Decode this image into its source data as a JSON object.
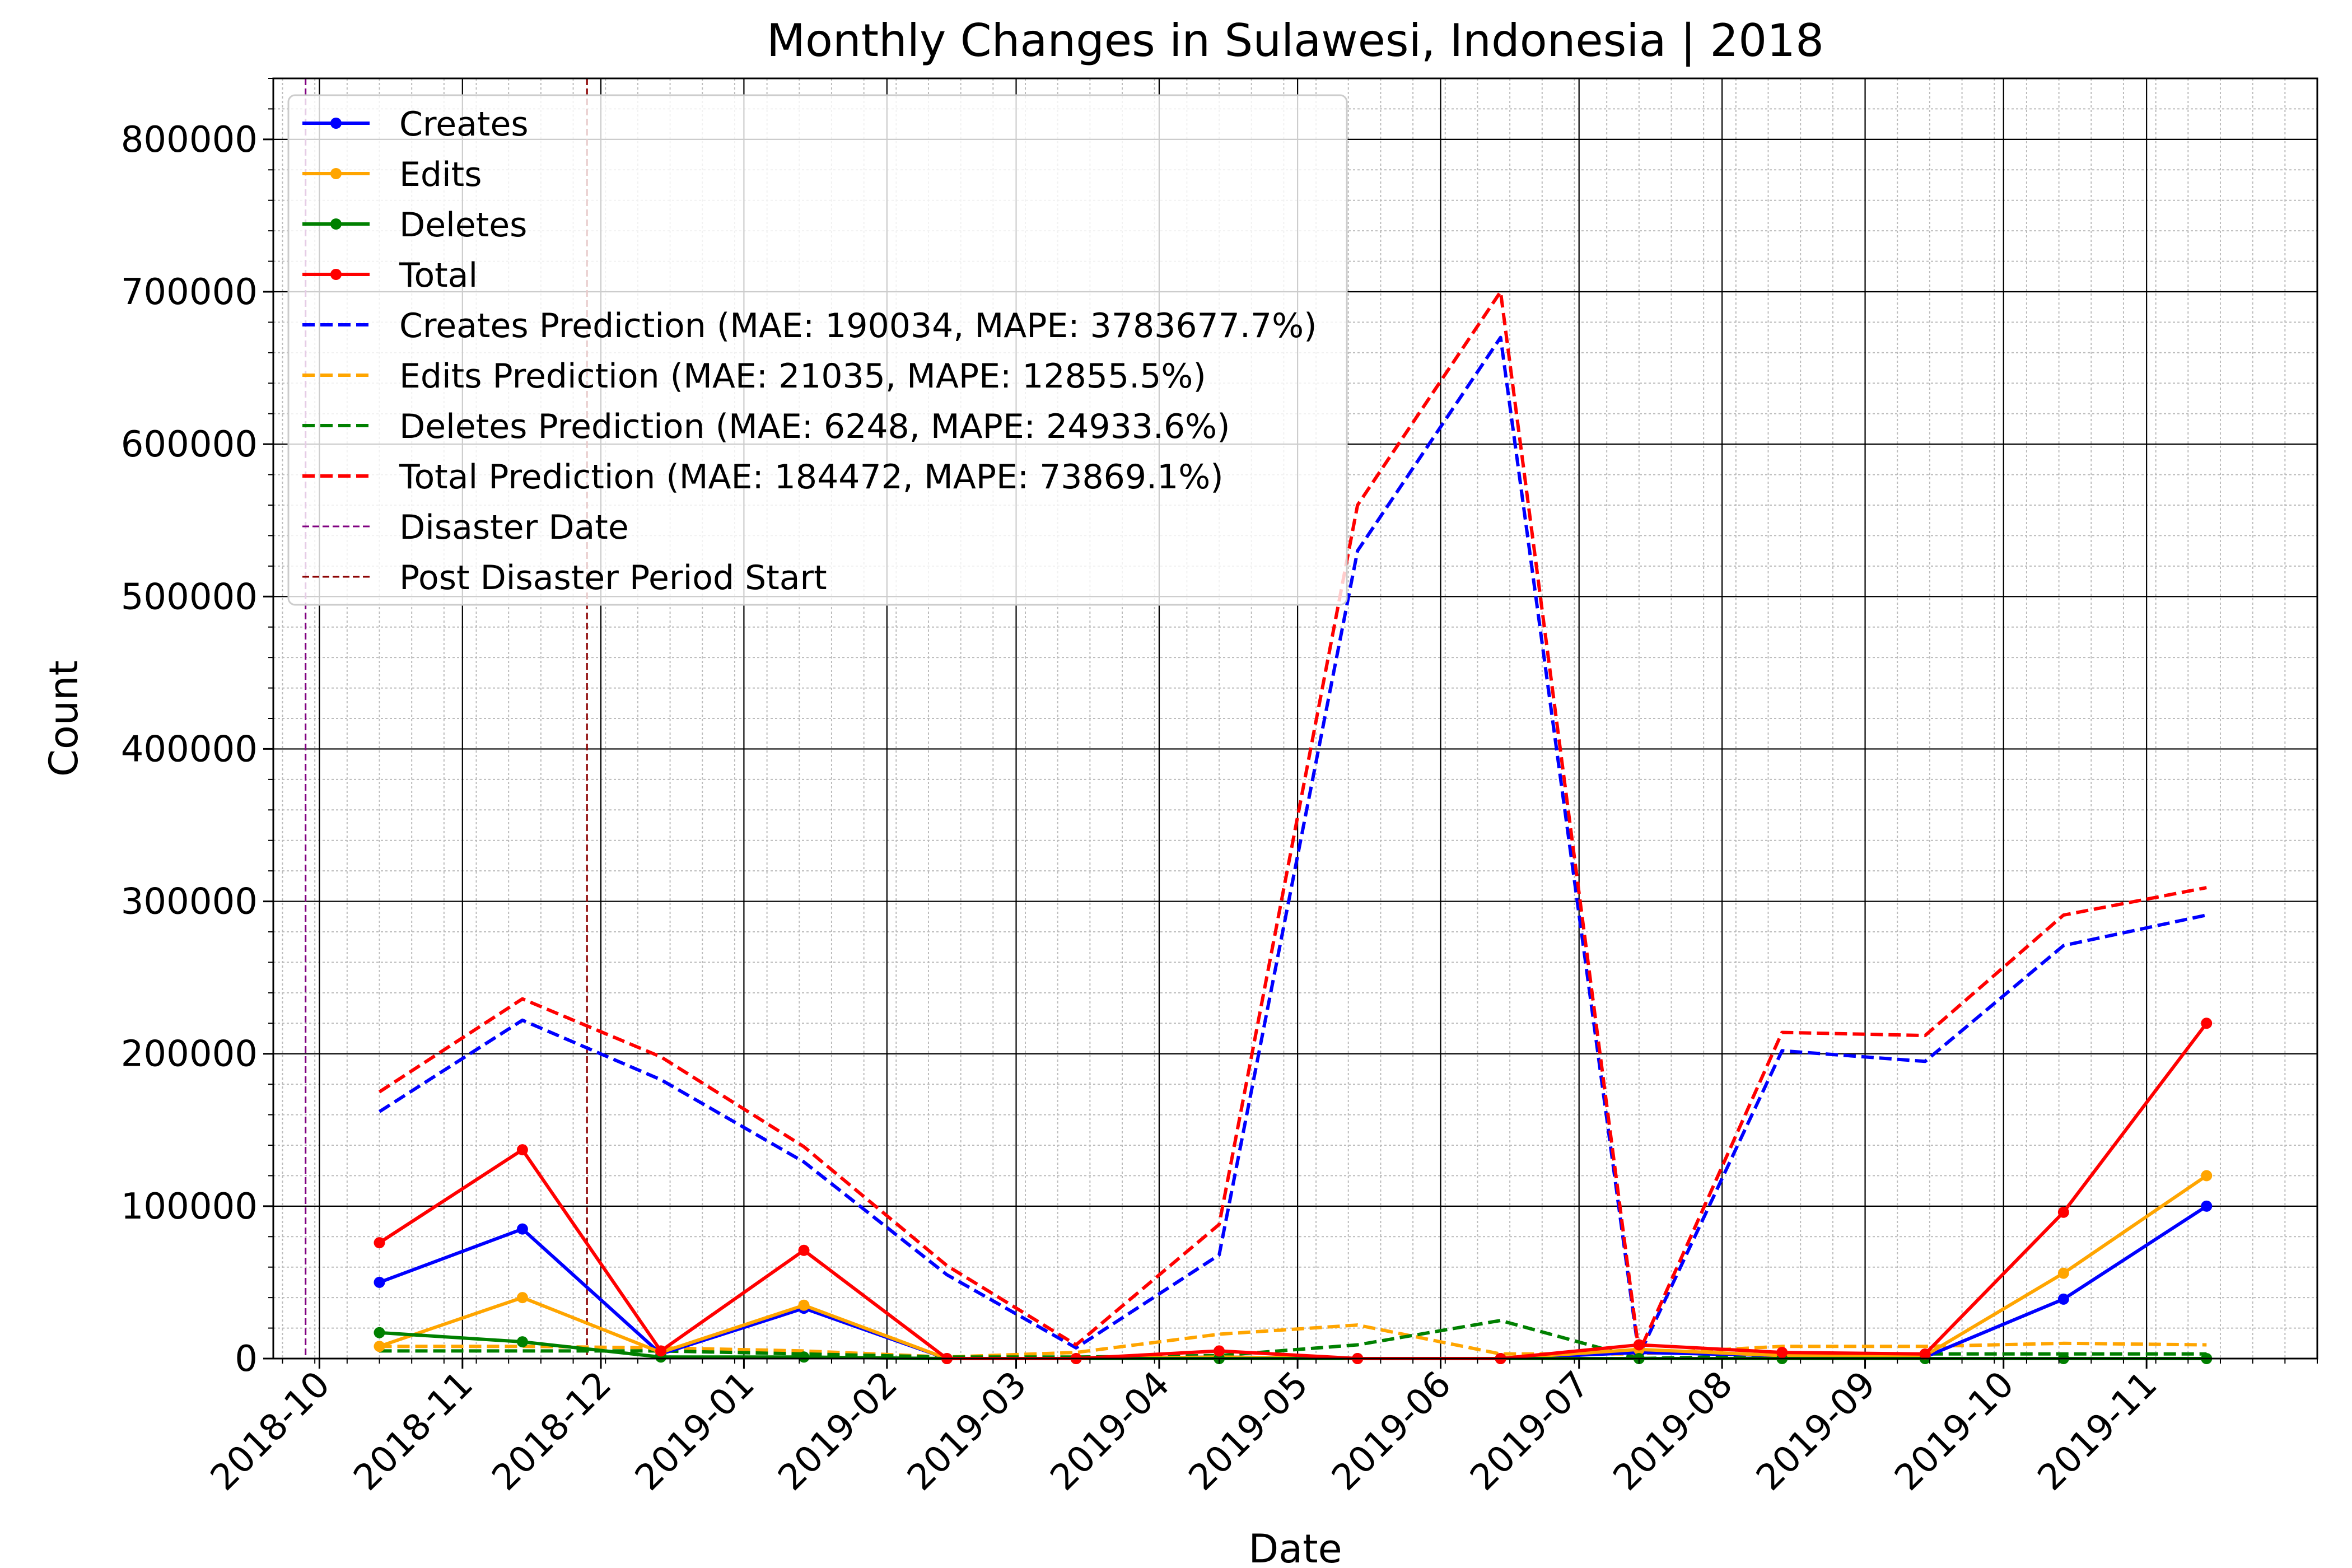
{
  "chart_data": {
    "type": "line",
    "title": "Monthly Changes in Sulawesi, Indonesia | 2018",
    "xlabel": "Date",
    "ylabel": "Count",
    "xlim": [
      "2018-09-21",
      "2019-12-08"
    ],
    "ylim": [
      0,
      840000
    ],
    "x_ticks": [
      "2018-10-01",
      "2018-11-01",
      "2018-12-01",
      "2019-01-01",
      "2019-02-01",
      "2019-03-01",
      "2019-04-01",
      "2019-05-01",
      "2019-06-01",
      "2019-07-01",
      "2019-08-01",
      "2019-09-01",
      "2019-10-01",
      "2019-11-01"
    ],
    "x_tick_labels": [
      "2018-10",
      "2018-11",
      "2018-12",
      "2019-01",
      "2019-02",
      "2019-03",
      "2019-04",
      "2019-05",
      "2019-06",
      "2019-07",
      "2019-08",
      "2019-09",
      "2019-10",
      "2019-11"
    ],
    "y_ticks": [
      0,
      100000,
      200000,
      300000,
      400000,
      500000,
      600000,
      700000,
      800000
    ],
    "y_tick_labels": [
      "0",
      "100000",
      "200000",
      "300000",
      "400000",
      "500000",
      "600000",
      "700000",
      "800000"
    ],
    "grid": "major and minor",
    "legend_position": "upper-left",
    "x": [
      "2018-10-14",
      "2018-11-14",
      "2018-12-14",
      "2019-01-14",
      "2019-02-14",
      "2019-03-14",
      "2019-04-14",
      "2019-05-14",
      "2019-06-14",
      "2019-07-14",
      "2019-08-14",
      "2019-09-14",
      "2019-10-14",
      "2019-11-14"
    ],
    "series": [
      {
        "name": "Creates",
        "color": "#0000ff",
        "style": "solid-marker",
        "values": [
          50000,
          85000,
          3000,
          33000,
          0,
          0,
          1000,
          0,
          0,
          4000,
          2000,
          1000,
          39000,
          100000
        ]
      },
      {
        "name": "Edits",
        "color": "#ffa500",
        "style": "solid-marker",
        "values": [
          8000,
          40000,
          4000,
          35000,
          0,
          0,
          1000,
          0,
          0,
          6000,
          2000,
          2000,
          56000,
          120000
        ]
      },
      {
        "name": "Deletes",
        "color": "#008000",
        "style": "solid-marker",
        "values": [
          17000,
          11000,
          1000,
          1000,
          0,
          0,
          0,
          0,
          0,
          0,
          0,
          0,
          0,
          0
        ]
      },
      {
        "name": "Total",
        "color": "#ff0000",
        "style": "solid-marker",
        "values": [
          76000,
          137000,
          5000,
          71000,
          0,
          0,
          5000,
          0,
          0,
          9000,
          4000,
          3000,
          96000,
          220000
        ]
      },
      {
        "name": "Creates Prediction (MAE: 190034, MAPE: 3783677.7%)",
        "color": "#0000ff",
        "style": "dashed",
        "values": [
          162000,
          222000,
          183000,
          129000,
          55000,
          7000,
          68000,
          530000,
          670000,
          2000,
          202000,
          195000,
          271000,
          291000
        ]
      },
      {
        "name": "Edits Prediction (MAE: 21035, MAPE: 12855.5%)",
        "color": "#ffa500",
        "style": "dashed",
        "values": [
          8000,
          8000,
          7000,
          5000,
          1000,
          4000,
          16000,
          22000,
          3000,
          3000,
          8000,
          8000,
          10000,
          9000
        ]
      },
      {
        "name": "Deletes Prediction (MAE: 6248, MAPE: 24933.6%)",
        "color": "#008000",
        "style": "dashed",
        "values": [
          5000,
          5000,
          5000,
          3000,
          1000,
          1000,
          2000,
          9000,
          25000,
          0,
          2000,
          3000,
          3000,
          3000
        ]
      },
      {
        "name": "Total Prediction (MAE: 184472, MAPE: 73869.1%)",
        "color": "#ff0000",
        "style": "dashed",
        "values": [
          175000,
          236000,
          198000,
          139000,
          61000,
          9000,
          88000,
          560000,
          700000,
          4000,
          214000,
          212000,
          291000,
          309000
        ]
      }
    ],
    "vlines": [
      {
        "name": "Disaster Date",
        "x": "2018-09-28",
        "color": "#800080"
      },
      {
        "name": "Post Disaster Period Start",
        "x": "2018-11-28",
        "color": "#8b0000"
      }
    ]
  }
}
